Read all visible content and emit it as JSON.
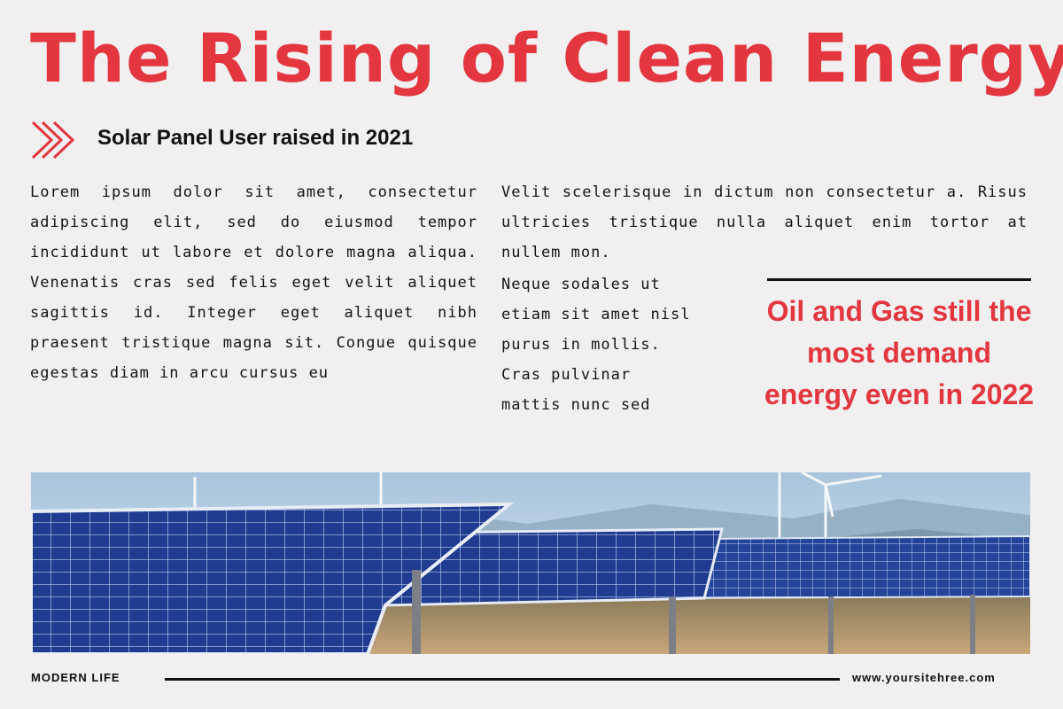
{
  "header": {
    "title": "The Rising of Clean Energy",
    "subtitle": "Solar Panel User raised in 2021"
  },
  "icons": {
    "subtitle_marker": "double-chevron-right-icon"
  },
  "colors": {
    "accent": "#e3363f",
    "text": "#111111",
    "background": "#f1eff0"
  },
  "body": {
    "column1": "Lorem ipsum dolor sit amet, consectetur adipiscing elit, sed do eiusmod tempor incididunt ut labore et dolore magna aliqua. Venenatis cras sed felis eget velit aliquet sagittis id. Integer eget aliquet nibh praesent tristique magna sit. Congue quisque egestas diam in arcu cursus eu",
    "column2": "Velit scelerisque in dictum non consectetur a. Risus ultricies tristique nulla aliquet enim tortor at nullem mon.",
    "column3_lines": [
      "Neque sodales ut",
      "etiam sit amet nisl",
      "purus in mollis.",
      "Cras pulvinar",
      "mattis nunc sed"
    ]
  },
  "callout": {
    "text": "Oil and Gas still the most demand energy even in 2022"
  },
  "image": {
    "subject": "solar-panels-and-wind-turbines-photo"
  },
  "footer": {
    "left": "MODERN LIFE",
    "right": "www.yoursitehree.com"
  }
}
